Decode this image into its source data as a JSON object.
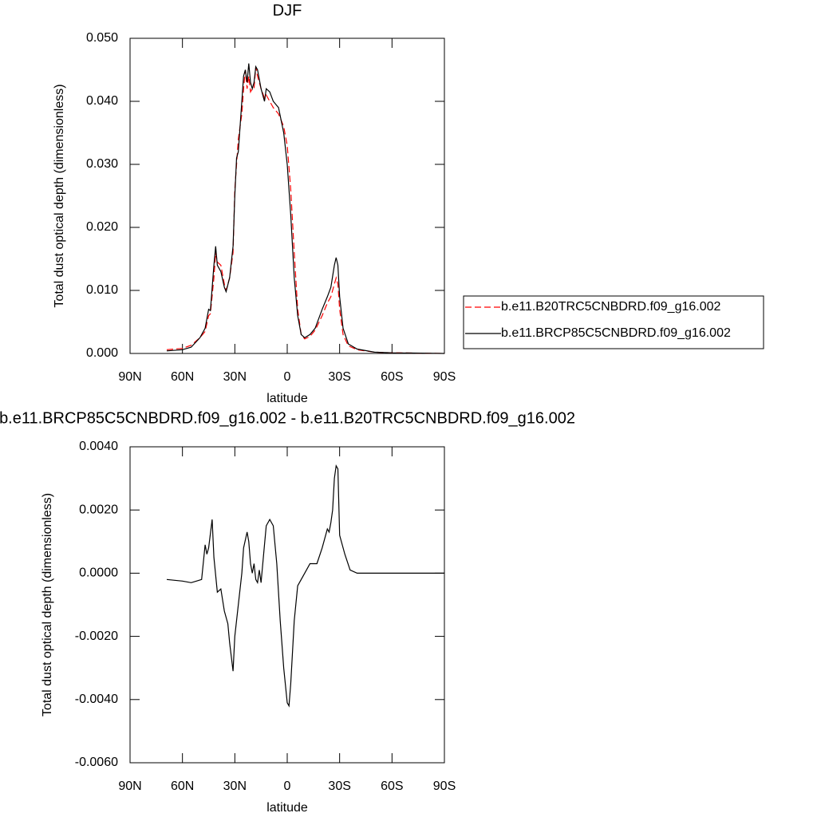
{
  "chart_data": [
    {
      "type": "line",
      "title": "DJF",
      "x_label": "latitude",
      "y_label": "Total dust optical depth (dimensionless)",
      "xlim": [
        90,
        -90
      ],
      "xticks": [
        {
          "value": 90,
          "label": "90N"
        },
        {
          "value": 60,
          "label": "60N"
        },
        {
          "value": 30,
          "label": "30N"
        },
        0,
        {
          "value": -30,
          "label": "30S"
        },
        {
          "value": -60,
          "label": "60S"
        },
        {
          "value": -90,
          "label": "90S"
        }
      ],
      "ylim": [
        0,
        0.05
      ],
      "yticks": [
        {
          "value": 0,
          "label": "0.000"
        },
        {
          "value": 0.01,
          "label": "0.010"
        },
        {
          "value": 0.02,
          "label": "0.020"
        },
        {
          "value": 0.03,
          "label": "0.030"
        },
        {
          "value": 0.04,
          "label": "0.040"
        },
        {
          "value": 0.05,
          "label": "0.050"
        }
      ],
      "legend": "right",
      "x": [
        69,
        60,
        55,
        50,
        47,
        45,
        44,
        42,
        41,
        40,
        38,
        36,
        35,
        33,
        31,
        30,
        29,
        28,
        27,
        26,
        25,
        24,
        23,
        22,
        21,
        20,
        19,
        18,
        17,
        15,
        13,
        12,
        10,
        8,
        5,
        2,
        0,
        -2,
        -4,
        -6,
        -8,
        -10,
        -13,
        -16,
        -20,
        -23,
        -25,
        -27,
        -28,
        -29,
        -30,
        -32,
        -35,
        -40,
        -50,
        -60,
        -90
      ],
      "series": [
        {
          "name": "b.e11.B20TRC5CNBDRD.f09_g16.002",
          "color": "#ff0000",
          "dashed": true,
          "values": [
            0.0006,
            0.0008,
            0.0013,
            0.0025,
            0.0035,
            0.006,
            0.0063,
            0.012,
            0.016,
            0.0145,
            0.014,
            0.011,
            0.01,
            0.012,
            0.016,
            0.026,
            0.03,
            0.034,
            0.036,
            0.038,
            0.042,
            0.045,
            0.042,
            0.044,
            0.0415,
            0.042,
            0.042,
            0.0455,
            0.044,
            0.042,
            0.0405,
            0.041,
            0.04,
            0.039,
            0.038,
            0.036,
            0.033,
            0.026,
            0.016,
            0.007,
            0.003,
            0.0023,
            0.0027,
            0.0037,
            0.006,
            0.008,
            0.009,
            0.011,
            0.012,
            0.011,
            0.007,
            0.003,
            0.0012,
            0.0006,
            0.0002,
            0.0001,
            0.0
          ]
        },
        {
          "name": "b.e11.BRCP85C5CNBDRD.f09_g16.002",
          "color": "#000000",
          "dashed": false,
          "values": [
            0.0004,
            0.0006,
            0.001,
            0.0025,
            0.004,
            0.007,
            0.0068,
            0.014,
            0.017,
            0.014,
            0.013,
            0.0105,
            0.0098,
            0.012,
            0.017,
            0.025,
            0.031,
            0.032,
            0.036,
            0.04,
            0.044,
            0.045,
            0.043,
            0.046,
            0.043,
            0.042,
            0.043,
            0.0455,
            0.045,
            0.042,
            0.04,
            0.042,
            0.0415,
            0.04,
            0.039,
            0.035,
            0.03,
            0.022,
            0.012,
            0.006,
            0.003,
            0.0025,
            0.003,
            0.004,
            0.007,
            0.009,
            0.0105,
            0.014,
            0.0152,
            0.014,
            0.009,
            0.004,
            0.0015,
            0.0007,
            0.0002,
            0.0001,
            0.0
          ]
        }
      ]
    },
    {
      "type": "line",
      "title": "b.e11.BRCP85C5CNBDRD.f09_g16.002 - b.e11.B20TRC5CNBDRD.f09_g16.002",
      "x_label": "latitude",
      "y_label": "Total dust optical depth (dimensionless)",
      "xlim": [
        90,
        -90
      ],
      "xticks": [
        {
          "value": 90,
          "label": "90N"
        },
        {
          "value": 60,
          "label": "60N"
        },
        {
          "value": 30,
          "label": "30N"
        },
        0,
        {
          "value": -30,
          "label": "30S"
        },
        {
          "value": -60,
          "label": "60S"
        },
        {
          "value": -90,
          "label": "90S"
        }
      ],
      "ylim": [
        -0.006,
        0.004
      ],
      "yticks": [
        {
          "value": -0.006,
          "label": "-0.0060"
        },
        {
          "value": -0.004,
          "label": "-0.0040"
        },
        {
          "value": -0.002,
          "label": "-0.0020"
        },
        {
          "value": 0,
          "label": "0.0000"
        },
        {
          "value": 0.002,
          "label": "0.0020"
        },
        {
          "value": 0.004,
          "label": "0.0040"
        }
      ],
      "x": [
        69,
        60,
        55,
        52,
        49,
        47,
        46,
        45,
        43,
        42,
        40,
        38,
        36,
        34,
        33,
        31,
        30,
        28,
        26,
        25,
        23,
        22,
        21,
        20,
        19,
        18,
        17,
        16,
        15,
        13,
        12,
        10,
        8,
        6,
        4,
        2,
        0,
        -1,
        -2,
        -4,
        -6,
        -8,
        -10,
        -13,
        -17,
        -20,
        -23,
        -24,
        -25,
        -26,
        -27,
        -28,
        -29,
        -30,
        -33,
        -36,
        -40,
        -60,
        -90
      ],
      "series": [
        {
          "color": "#000000",
          "dashed": false,
          "values": [
            -0.0002,
            -0.00025,
            -0.0003,
            -0.00025,
            -0.0002,
            0.0009,
            0.0006,
            0.0008,
            0.0017,
            0.0005,
            -0.0006,
            -0.0005,
            -0.0012,
            -0.0016,
            -0.0022,
            -0.0031,
            -0.002,
            -0.001,
            0.0,
            0.0008,
            0.0013,
            0.001,
            0.0003,
            0.0,
            0.0003,
            -0.0002,
            -0.0003,
            0.0001,
            -0.0003,
            0.0009,
            0.0015,
            0.0017,
            0.0015,
            0.0003,
            -0.0015,
            -0.003,
            -0.0041,
            -0.0042,
            -0.0035,
            -0.0015,
            -0.0004,
            -0.0002,
            0.0,
            0.0003,
            0.0003,
            0.0008,
            0.0014,
            0.0013,
            0.0016,
            0.002,
            0.003,
            0.0034,
            0.0033,
            0.0012,
            0.0006,
            0.0001,
            0.0,
            0.0,
            0.0
          ]
        }
      ]
    }
  ]
}
